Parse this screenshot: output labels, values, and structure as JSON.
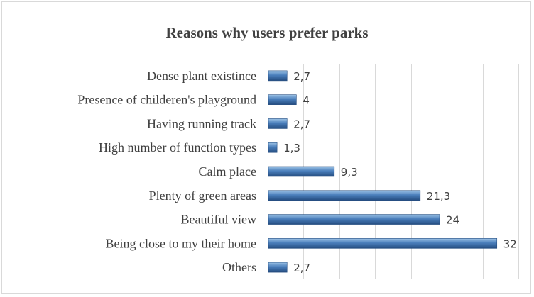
{
  "chart_data": {
    "type": "bar",
    "orientation": "horizontal",
    "title": "Reasons why users prefer parks",
    "categories": [
      "Dense plant existince",
      "Presence of childeren's playground",
      "Having running track",
      "High number of function types",
      "Calm place",
      "Plenty of green areas",
      "Beautiful view",
      "Being close to my their home",
      "Others"
    ],
    "values": [
      2.7,
      4,
      2.7,
      1.3,
      9.3,
      21.3,
      24,
      32,
      2.7
    ],
    "value_labels": [
      "2,7",
      "4",
      "2,7",
      "1,3",
      "9,3",
      "21,3",
      "24",
      "32",
      "2,7"
    ],
    "xlim": [
      0,
      35
    ],
    "gridlines": "vertical",
    "legend": "none",
    "colors": {
      "bar": "#4a7ebb",
      "bar_light": "#9dc3e6",
      "bar_dark": "#254d80",
      "text": "#404040",
      "grid": "#d9d9d9"
    }
  }
}
